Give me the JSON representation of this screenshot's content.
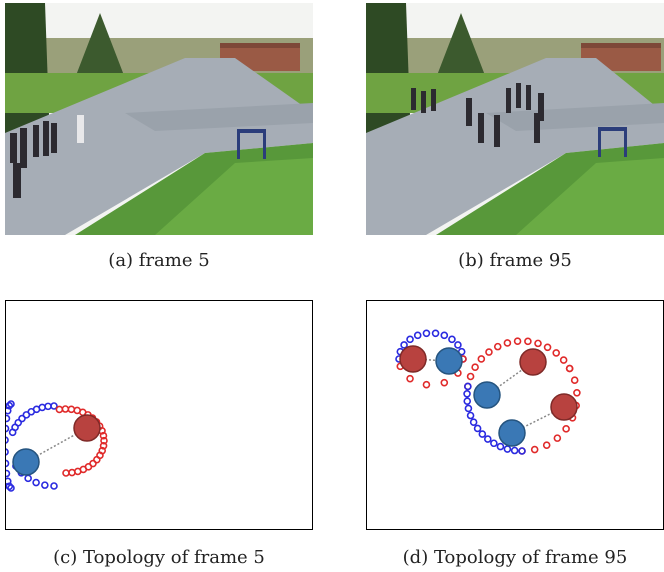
{
  "figure": {
    "panels": [
      {
        "id": "a",
        "caption": "(a)  frame 5"
      },
      {
        "id": "b",
        "caption": "(b)  frame 95"
      },
      {
        "id": "c",
        "caption": "(c)  Topology of frame 5"
      },
      {
        "id": "d",
        "caption": "(d)  Topology of frame 95"
      }
    ]
  },
  "colors": {
    "red_node": "#b8423f",
    "blue_node": "#3a78b5",
    "red_dot": "#e02a2a",
    "blue_dot": "#2a2ae0",
    "link": "#888888"
  }
}
